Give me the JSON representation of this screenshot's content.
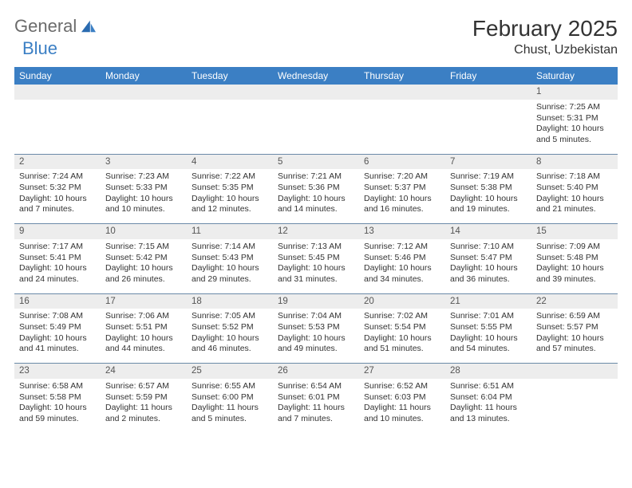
{
  "logo": {
    "text1": "General",
    "text2": "Blue"
  },
  "title": "February 2025",
  "location": "Chust, Uzbekistan",
  "colors": {
    "header_bg": "#3b7fc4",
    "header_text": "#ffffff",
    "daynum_bg": "#ededed",
    "cell_border": "#6b8aa8",
    "body_text": "#333333",
    "logo_gray": "#6b6b6b",
    "logo_blue": "#3b7fc4"
  },
  "weekdays": [
    "Sunday",
    "Monday",
    "Tuesday",
    "Wednesday",
    "Thursday",
    "Friday",
    "Saturday"
  ],
  "weeks": [
    [
      null,
      null,
      null,
      null,
      null,
      null,
      {
        "n": "1",
        "sr": "7:25 AM",
        "ss": "5:31 PM",
        "dl": "10 hours and 5 minutes."
      }
    ],
    [
      {
        "n": "2",
        "sr": "7:24 AM",
        "ss": "5:32 PM",
        "dl": "10 hours and 7 minutes."
      },
      {
        "n": "3",
        "sr": "7:23 AM",
        "ss": "5:33 PM",
        "dl": "10 hours and 10 minutes."
      },
      {
        "n": "4",
        "sr": "7:22 AM",
        "ss": "5:35 PM",
        "dl": "10 hours and 12 minutes."
      },
      {
        "n": "5",
        "sr": "7:21 AM",
        "ss": "5:36 PM",
        "dl": "10 hours and 14 minutes."
      },
      {
        "n": "6",
        "sr": "7:20 AM",
        "ss": "5:37 PM",
        "dl": "10 hours and 16 minutes."
      },
      {
        "n": "7",
        "sr": "7:19 AM",
        "ss": "5:38 PM",
        "dl": "10 hours and 19 minutes."
      },
      {
        "n": "8",
        "sr": "7:18 AM",
        "ss": "5:40 PM",
        "dl": "10 hours and 21 minutes."
      }
    ],
    [
      {
        "n": "9",
        "sr": "7:17 AM",
        "ss": "5:41 PM",
        "dl": "10 hours and 24 minutes."
      },
      {
        "n": "10",
        "sr": "7:15 AM",
        "ss": "5:42 PM",
        "dl": "10 hours and 26 minutes."
      },
      {
        "n": "11",
        "sr": "7:14 AM",
        "ss": "5:43 PM",
        "dl": "10 hours and 29 minutes."
      },
      {
        "n": "12",
        "sr": "7:13 AM",
        "ss": "5:45 PM",
        "dl": "10 hours and 31 minutes."
      },
      {
        "n": "13",
        "sr": "7:12 AM",
        "ss": "5:46 PM",
        "dl": "10 hours and 34 minutes."
      },
      {
        "n": "14",
        "sr": "7:10 AM",
        "ss": "5:47 PM",
        "dl": "10 hours and 36 minutes."
      },
      {
        "n": "15",
        "sr": "7:09 AM",
        "ss": "5:48 PM",
        "dl": "10 hours and 39 minutes."
      }
    ],
    [
      {
        "n": "16",
        "sr": "7:08 AM",
        "ss": "5:49 PM",
        "dl": "10 hours and 41 minutes."
      },
      {
        "n": "17",
        "sr": "7:06 AM",
        "ss": "5:51 PM",
        "dl": "10 hours and 44 minutes."
      },
      {
        "n": "18",
        "sr": "7:05 AM",
        "ss": "5:52 PM",
        "dl": "10 hours and 46 minutes."
      },
      {
        "n": "19",
        "sr": "7:04 AM",
        "ss": "5:53 PM",
        "dl": "10 hours and 49 minutes."
      },
      {
        "n": "20",
        "sr": "7:02 AM",
        "ss": "5:54 PM",
        "dl": "10 hours and 51 minutes."
      },
      {
        "n": "21",
        "sr": "7:01 AM",
        "ss": "5:55 PM",
        "dl": "10 hours and 54 minutes."
      },
      {
        "n": "22",
        "sr": "6:59 AM",
        "ss": "5:57 PM",
        "dl": "10 hours and 57 minutes."
      }
    ],
    [
      {
        "n": "23",
        "sr": "6:58 AM",
        "ss": "5:58 PM",
        "dl": "10 hours and 59 minutes."
      },
      {
        "n": "24",
        "sr": "6:57 AM",
        "ss": "5:59 PM",
        "dl": "11 hours and 2 minutes."
      },
      {
        "n": "25",
        "sr": "6:55 AM",
        "ss": "6:00 PM",
        "dl": "11 hours and 5 minutes."
      },
      {
        "n": "26",
        "sr": "6:54 AM",
        "ss": "6:01 PM",
        "dl": "11 hours and 7 minutes."
      },
      {
        "n": "27",
        "sr": "6:52 AM",
        "ss": "6:03 PM",
        "dl": "11 hours and 10 minutes."
      },
      {
        "n": "28",
        "sr": "6:51 AM",
        "ss": "6:04 PM",
        "dl": "11 hours and 13 minutes."
      },
      null
    ]
  ],
  "labels": {
    "sunrise": "Sunrise:",
    "sunset": "Sunset:",
    "daylight": "Daylight:"
  }
}
